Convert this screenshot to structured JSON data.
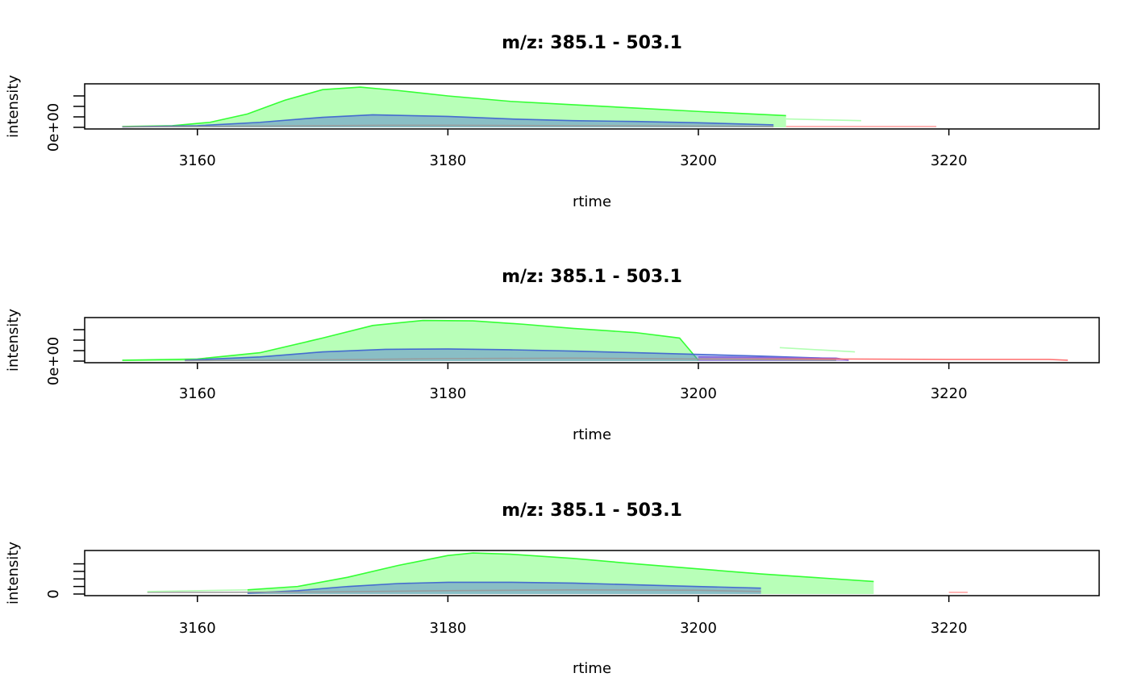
{
  "chart_data": [
    {
      "type": "area",
      "title": "m/z: 385.1 - 503.1",
      "xlabel": "rtime",
      "ylabel": "intensity",
      "xlim": [
        3151,
        3232
      ],
      "xticks": [
        3160,
        3180,
        3200,
        3220
      ],
      "ylim": [
        0,
        1
      ],
      "yticks": [
        0,
        0.25,
        0.5,
        0.75
      ],
      "ytick_labels": [
        "0e+00",
        "",
        "",
        ""
      ],
      "series": [
        {
          "color": "#00ff0040",
          "stroke": "#22ff22",
          "fill": true,
          "x": [
            3154,
            3158,
            3161,
            3164,
            3167,
            3170,
            3173,
            3176,
            3180,
            3185,
            3190,
            3195,
            3200,
            3207
          ],
          "y": [
            0.02,
            0.04,
            0.12,
            0.32,
            0.65,
            0.9,
            0.96,
            0.88,
            0.75,
            0.62,
            0.54,
            0.46,
            0.38,
            0.28
          ]
        },
        {
          "color": "#4f6fd4",
          "stroke": "#3b5fd0",
          "fill": true,
          "x": [
            3154,
            3160,
            3165,
            3170,
            3174,
            3180,
            3185,
            3190,
            3195,
            3200,
            3206
          ],
          "y": [
            0.01,
            0.04,
            0.12,
            0.24,
            0.3,
            0.26,
            0.2,
            0.16,
            0.14,
            0.11,
            0.06
          ]
        },
        {
          "color": "#c0c0c0",
          "stroke": "#999999",
          "fill": false,
          "x": [
            3154,
            3165,
            3175,
            3180,
            3190,
            3200,
            3206
          ],
          "y": [
            0.01,
            0.03,
            0.05,
            0.05,
            0.04,
            0.03,
            0.02
          ]
        },
        {
          "color": "#ccffcc",
          "stroke": "#aaffaa",
          "fill": false,
          "x": [
            3207,
            3213
          ],
          "y": [
            0.2,
            0.16
          ]
        },
        {
          "color": "#ff8080",
          "stroke": "#ff9999",
          "fill": false,
          "x": [
            3207,
            3209,
            3218,
            3219
          ],
          "y": [
            0.02,
            0.02,
            0.02,
            0.02
          ]
        }
      ]
    },
    {
      "type": "area",
      "title": "m/z: 385.1 - 503.1",
      "xlabel": "rtime",
      "ylabel": "intensity",
      "xlim": [
        3151,
        3232
      ],
      "xticks": [
        3160,
        3180,
        3200,
        3220
      ],
      "ylim": [
        0,
        1
      ],
      "yticks": [
        0,
        0.25,
        0.5,
        0.75
      ],
      "ytick_labels": [
        "0e+00",
        "",
        "",
        ""
      ],
      "series": [
        {
          "color": "#00ff0040",
          "stroke": "#22ff22",
          "fill": true,
          "x": [
            3154,
            3160,
            3165,
            3170,
            3174,
            3178,
            3182,
            3186,
            3190,
            3195,
            3198.5,
            3200
          ],
          "y": [
            0.02,
            0.05,
            0.2,
            0.55,
            0.85,
            0.97,
            0.96,
            0.88,
            0.78,
            0.68,
            0.55,
            0.02
          ]
        },
        {
          "color": "#4f6fd4",
          "stroke": "#3b5fd0",
          "fill": true,
          "x": [
            3159,
            3165,
            3170,
            3175,
            3180,
            3185,
            3190,
            3195,
            3200,
            3205,
            3211
          ],
          "y": [
            0.02,
            0.1,
            0.22,
            0.28,
            0.29,
            0.27,
            0.24,
            0.2,
            0.16,
            0.12,
            0.06
          ]
        },
        {
          "color": "#9070e0",
          "stroke": "#8060d8",
          "fill": true,
          "x": [
            3200,
            3205,
            3211,
            3212
          ],
          "y": [
            0.1,
            0.09,
            0.07,
            0.02
          ]
        },
        {
          "color": "#ff8080",
          "stroke": "#ff6666",
          "fill": false,
          "x": [
            3200,
            3212,
            3220,
            3228,
            3229.5
          ],
          "y": [
            0.05,
            0.05,
            0.04,
            0.04,
            0.02
          ]
        },
        {
          "color": "#c0c0c0",
          "stroke": "#999999",
          "fill": false,
          "x": [
            3159,
            3170,
            3180,
            3190,
            3200,
            3211
          ],
          "y": [
            0.01,
            0.03,
            0.06,
            0.07,
            0.05,
            0.02
          ]
        },
        {
          "color": "#ccffcc",
          "stroke": "#aaffaa",
          "fill": false,
          "x": [
            3206.5,
            3212.5
          ],
          "y": [
            0.32,
            0.22
          ]
        }
      ]
    },
    {
      "type": "area",
      "title": "m/z: 385.1 - 503.1",
      "xlabel": "rtime",
      "ylabel": "intensity",
      "xlim": [
        3151,
        3232
      ],
      "xticks": [
        3160,
        3180,
        3200,
        3220
      ],
      "ylim": [
        0,
        1
      ],
      "yticks": [
        0,
        0.18,
        0.36,
        0.54,
        0.72
      ],
      "ytick_labels": [
        "0",
        "",
        "",
        "",
        ""
      ],
      "series": [
        {
          "color": "#00ff0040",
          "stroke": "#22ff22",
          "fill": true,
          "x": [
            3164,
            3168,
            3172,
            3176,
            3180,
            3182,
            3185,
            3190,
            3195,
            3200,
            3205,
            3210,
            3214
          ],
          "y": [
            0.1,
            0.18,
            0.4,
            0.68,
            0.92,
            0.98,
            0.95,
            0.85,
            0.72,
            0.6,
            0.48,
            0.38,
            0.3
          ]
        },
        {
          "color": "#4f6fd4",
          "stroke": "#3b5fd0",
          "fill": true,
          "x": [
            3164,
            3168,
            3172,
            3176,
            3180,
            3185,
            3190,
            3195,
            3200,
            3205
          ],
          "y": [
            0.02,
            0.08,
            0.18,
            0.25,
            0.28,
            0.28,
            0.26,
            0.22,
            0.18,
            0.14
          ]
        },
        {
          "color": "#c0c0c0",
          "stroke": "#999999",
          "fill": false,
          "x": [
            3156,
            3161,
            3170,
            3180,
            3190,
            3200,
            3205
          ],
          "y": [
            0.04,
            0.04,
            0.05,
            0.08,
            0.1,
            0.09,
            0.06
          ]
        },
        {
          "color": "#ccffcc",
          "stroke": "#aaffaa",
          "fill": false,
          "x": [
            3156,
            3164
          ],
          "y": [
            0.06,
            0.1
          ]
        },
        {
          "color": "#ff8080",
          "stroke": "#ff9999",
          "fill": false,
          "x": [
            3220,
            3221.5
          ],
          "y": [
            0.04,
            0.04
          ]
        }
      ]
    }
  ]
}
